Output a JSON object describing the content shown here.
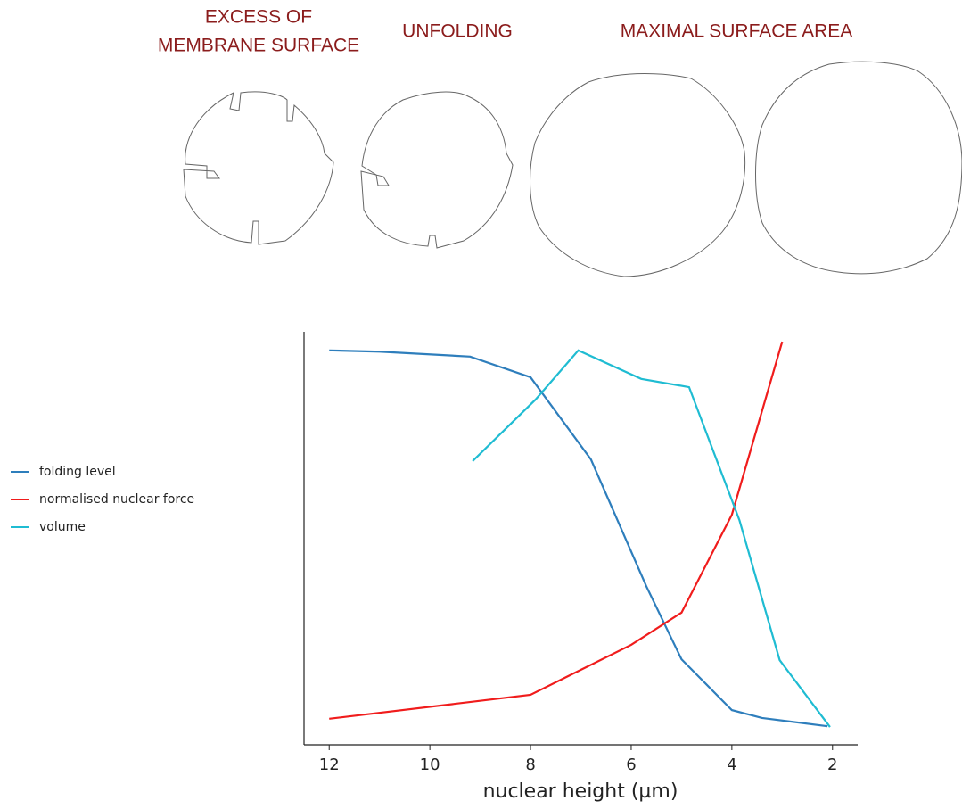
{
  "chart_data": {
    "type": "line",
    "annotations": [
      "EXCESS OF",
      "MEMBRANE SURFACE",
      "UNFOLDING",
      "MAXIMAL SURFACE AREA"
    ],
    "xlabel": "nuclear height (µm)",
    "xlim": [
      12.5,
      1.5
    ],
    "xticks": [
      12,
      10,
      8,
      6,
      4,
      2
    ],
    "ylim": [
      0,
      1
    ],
    "legend": "left",
    "series": [
      {
        "name": "folding level",
        "color": "#2e7ebc",
        "x": [
          12,
          11,
          9.2,
          8,
          6.8,
          5.7,
          5,
          4,
          3.4,
          2.1
        ],
        "values": [
          0.955,
          0.952,
          0.94,
          0.89,
          0.691,
          0.384,
          0.207,
          0.084,
          0.065,
          0.045
        ]
      },
      {
        "name": "normalised nuclear force",
        "color": "#f01c1c",
        "x": [
          12,
          8,
          6,
          5,
          4,
          3
        ],
        "values": [
          0.063,
          0.121,
          0.242,
          0.32,
          0.557,
          0.976
        ]
      },
      {
        "name": "volume",
        "color": "#1fbcd2",
        "x": [
          9.15,
          7.9,
          7.05,
          5.8,
          4.85,
          3.85,
          3.05,
          2.05
        ],
        "values": [
          0.687,
          0.836,
          0.955,
          0.886,
          0.866,
          0.544,
          0.205,
          0.043
        ]
      }
    ]
  }
}
